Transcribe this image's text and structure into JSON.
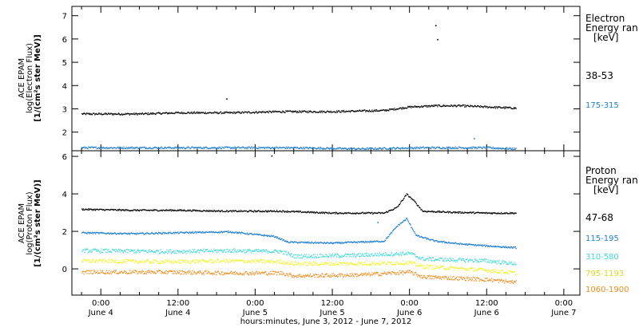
{
  "x_axis": {
    "ticks": [
      {
        "hour": 0,
        "time": "0:00",
        "day": "June 4"
      },
      {
        "hour": 12,
        "time": "12:00",
        "day": "June 4"
      },
      {
        "hour": 24,
        "time": "0:00",
        "day": "June 5"
      },
      {
        "hour": 36,
        "time": "12:00",
        "day": "June 5"
      },
      {
        "hour": 48,
        "time": "0:00",
        "day": "June 6"
      },
      {
        "hour": 60,
        "time": "12:00",
        "day": "June 6"
      },
      {
        "hour": 72,
        "time": "0:00",
        "day": "June 7"
      }
    ],
    "label": "hours:minutes,  June  3, 2012 - June  7, 2012"
  },
  "chart_data": [
    {
      "type": "scatter",
      "panel": "electron",
      "ylabel_lines": [
        "ACE EPAM",
        "log(Electron Flux)",
        "[1/(cm²s ster MeV)]"
      ],
      "legend_title": [
        "Electron",
        "Energy ran",
        "[keV]"
      ],
      "xlim_hours": [
        -4.5,
        74.5
      ],
      "ylim": [
        1.2,
        7.4
      ],
      "yticks": [
        2,
        3,
        4,
        5,
        6,
        7
      ],
      "x_start_hour": -3,
      "x_end_hour": 64.5,
      "series": [
        {
          "name": "38-53",
          "color": "#000000",
          "x": [
            -3,
            6,
            12,
            20,
            28,
            36,
            44,
            48,
            52,
            56,
            60,
            64.5
          ],
          "y": [
            2.8,
            2.8,
            2.85,
            2.85,
            2.9,
            2.9,
            2.95,
            3.1,
            3.15,
            3.15,
            3.1,
            3.05
          ],
          "outliers": [
            [
              19.5,
              3.45
            ],
            [
              52,
              6.6
            ],
            [
              52.3,
              6.0
            ]
          ]
        },
        {
          "name": "175-315",
          "color": "#1e7fd0",
          "x": [
            -3,
            10,
            20,
            30,
            40,
            50,
            60,
            64.5
          ],
          "y": [
            1.35,
            1.35,
            1.35,
            1.35,
            1.3,
            1.35,
            1.35,
            1.3
          ],
          "outliers": [
            [
              58,
              1.75
            ]
          ]
        }
      ]
    },
    {
      "type": "scatter",
      "panel": "proton",
      "ylabel_lines": [
        "ACE EPAM",
        "log(Proton Flux)",
        "[1/(cm²s ster MeV)]"
      ],
      "legend_title": [
        "Proton",
        "Energy ran",
        "[keV]"
      ],
      "xlim_hours": [
        -4.5,
        74.5
      ],
      "ylim": [
        -1.4,
        6.3
      ],
      "yticks": [
        0,
        2,
        4,
        6
      ],
      "x_start_hour": -3,
      "x_end_hour": 64.5,
      "series": [
        {
          "name": "47-68",
          "color": "#000000",
          "x": [
            -3,
            5,
            12,
            20,
            28,
            36,
            44,
            46,
            47.5,
            48.5,
            50,
            54,
            60,
            64.5
          ],
          "y": [
            3.2,
            3.15,
            3.15,
            3.1,
            3.1,
            3.0,
            3.0,
            3.3,
            4.0,
            3.7,
            3.1,
            3.05,
            3.0,
            3.0
          ],
          "outliers": [
            [
              26.5,
              6.05
            ]
          ]
        },
        {
          "name": "115-195",
          "color": "#1e7fd0",
          "x": [
            -3,
            5,
            12,
            20,
            27,
            29,
            36,
            44,
            46,
            47.5,
            49,
            52,
            56,
            60,
            64.5
          ],
          "y": [
            1.95,
            1.9,
            1.95,
            2.0,
            1.75,
            1.45,
            1.4,
            1.5,
            2.3,
            2.7,
            1.8,
            1.5,
            1.35,
            1.25,
            1.15
          ],
          "outliers": [
            [
              43,
              2.5
            ]
          ]
        },
        {
          "name": "310-580",
          "color": "#3fd8d8",
          "x": [
            -3,
            10,
            20,
            28,
            30,
            40,
            48,
            50,
            60,
            64.5
          ],
          "y": [
            1.0,
            0.95,
            1.0,
            0.95,
            0.7,
            0.75,
            0.85,
            0.55,
            0.45,
            0.3
          ]
        },
        {
          "name": "795-1193",
          "color": "#f0f028",
          "x": [
            -3,
            10,
            20,
            28,
            30,
            40,
            48,
            50,
            60,
            64.5
          ],
          "y": [
            0.45,
            0.4,
            0.45,
            0.4,
            0.3,
            0.3,
            0.35,
            0.15,
            -0.05,
            -0.2
          ]
        },
        {
          "name": "1060-1900",
          "color": "#f08c1e",
          "x": [
            -3,
            10,
            20,
            28,
            30,
            40,
            48,
            50,
            60,
            64.5
          ],
          "y": [
            -0.15,
            -0.15,
            -0.2,
            -0.2,
            -0.35,
            -0.3,
            -0.15,
            -0.4,
            -0.55,
            -0.7
          ]
        }
      ]
    }
  ]
}
